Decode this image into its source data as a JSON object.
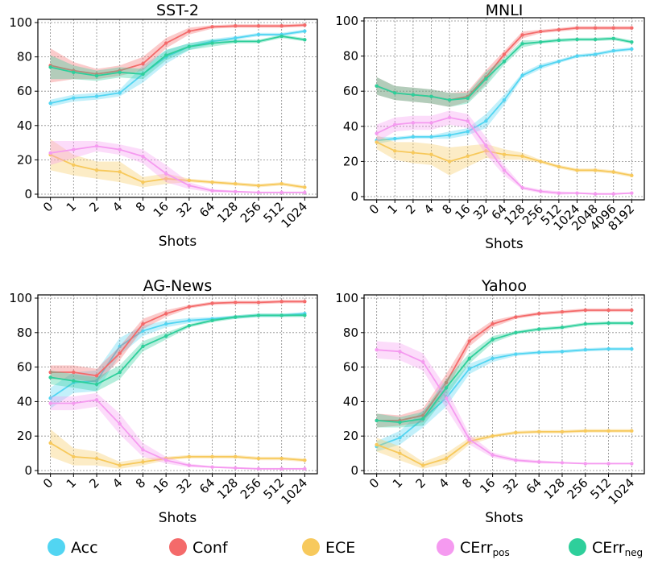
{
  "colors": {
    "Acc": "#52d5f2",
    "Conf": "#f46a6a",
    "ECE": "#f7c95c",
    "CErr_pos": "#f59af0",
    "CErr_neg": "#2ecf9b"
  },
  "legend": [
    {
      "key": "Acc",
      "label": "Acc",
      "sub": ""
    },
    {
      "key": "Conf",
      "label": "Conf",
      "sub": ""
    },
    {
      "key": "ECE",
      "label": "ECE",
      "sub": ""
    },
    {
      "key": "CErr_pos",
      "label": "CErr",
      "sub": "pos"
    },
    {
      "key": "CErr_neg",
      "label": "CErr",
      "sub": "neg"
    }
  ],
  "chart_data": [
    {
      "type": "line",
      "title": "SST-2",
      "xlabel": "Shots",
      "ylabel": "",
      "categories": [
        "0",
        "1",
        "2",
        "4",
        "8",
        "16",
        "32",
        "64",
        "128",
        "256",
        "512",
        "1024"
      ],
      "ylim": [
        0,
        100
      ],
      "yticks": [
        0,
        20,
        40,
        60,
        80,
        100
      ],
      "grid": true,
      "series": [
        {
          "key": "Acc",
          "values": [
            53,
            56,
            57,
            59,
            70,
            80,
            86,
            89,
            91,
            93,
            93,
            95
          ],
          "band": [
            2,
            2,
            2,
            2,
            5,
            4,
            2,
            1.5,
            1,
            1,
            1,
            1
          ]
        },
        {
          "key": "Conf",
          "values": [
            75,
            72,
            70,
            72,
            76,
            88,
            95,
            97.5,
            98,
            98,
            98,
            98.5
          ],
          "band": [
            10,
            5,
            3,
            3,
            4,
            3,
            2,
            1,
            1,
            1,
            1,
            1
          ]
        },
        {
          "key": "ECE",
          "values": [
            23,
            17,
            14,
            13,
            7,
            9,
            8,
            7,
            6,
            5,
            6,
            4
          ],
          "band": [
            9,
            6,
            5,
            6,
            3,
            3,
            1,
            1,
            1,
            1,
            1,
            1
          ]
        },
        {
          "key": "CErr_pos",
          "values": [
            24,
            26,
            28,
            26,
            22,
            12,
            5,
            2,
            1.5,
            1,
            1,
            1
          ],
          "band": [
            7,
            5,
            3,
            3,
            4,
            5,
            2,
            1,
            0.5,
            0.5,
            0.5,
            0.5
          ]
        },
        {
          "key": "CErr_neg",
          "values": [
            74,
            71,
            69,
            71,
            70,
            81,
            86,
            88,
            89,
            89,
            92,
            90
          ],
          "band": [
            7,
            4,
            3,
            3,
            3,
            3,
            2,
            2,
            1,
            1,
            1,
            1
          ]
        }
      ]
    },
    {
      "type": "line",
      "title": "MNLI",
      "xlabel": "Shots",
      "ylabel": "",
      "categories": [
        "0",
        "1",
        "2",
        "4",
        "8",
        "16",
        "32",
        "64",
        "128",
        "256",
        "512",
        "1024",
        "2048",
        "4096",
        "8192"
      ],
      "ylim": [
        0,
        100
      ],
      "yticks": [
        0,
        20,
        40,
        60,
        80,
        100
      ],
      "grid": true,
      "series": [
        {
          "key": "Acc",
          "values": [
            32,
            33,
            34,
            34,
            35,
            37,
            43,
            55,
            69,
            74,
            77,
            80,
            81,
            83,
            84
          ],
          "band": [
            2,
            1,
            1,
            1,
            2,
            2,
            4,
            3,
            1.5,
            1.5,
            1,
            1,
            1,
            1,
            1
          ]
        },
        {
          "key": "Conf",
          "values": [
            63,
            59,
            58,
            57,
            55,
            57,
            68,
            81,
            92,
            94,
            95,
            96,
            96,
            96,
            96
          ],
          "band": [
            5,
            4,
            4,
            4,
            4,
            3,
            4,
            2,
            2,
            1,
            1,
            1,
            1,
            1,
            1
          ]
        },
        {
          "key": "ECE",
          "values": [
            31,
            26,
            25,
            24,
            20,
            23,
            26,
            24,
            23,
            20,
            17,
            15,
            15,
            14,
            12
          ],
          "band": [
            4,
            5,
            6,
            6,
            8,
            6,
            4,
            3,
            2,
            1,
            1,
            1,
            1,
            1,
            1
          ]
        },
        {
          "key": "CErr_pos",
          "values": [
            36,
            41,
            42,
            42,
            45,
            43,
            29,
            15,
            5,
            3,
            2,
            2,
            1.5,
            1.5,
            2
          ],
          "band": [
            5,
            4,
            4,
            4,
            4,
            4,
            5,
            3,
            1,
            1,
            1,
            0.5,
            0.5,
            0.5,
            0.5
          ]
        },
        {
          "key": "CErr_neg",
          "values": [
            63,
            59,
            58,
            57,
            55,
            56,
            67,
            77,
            87,
            88,
            89,
            89.5,
            89.5,
            90,
            88
          ],
          "band": [
            5,
            4,
            4,
            4,
            4,
            3,
            4,
            2,
            2,
            1,
            1,
            1,
            1,
            1,
            1
          ]
        }
      ]
    },
    {
      "type": "line",
      "title": "AG-News",
      "xlabel": "Shots",
      "ylabel": "",
      "categories": [
        "0",
        "1",
        "2",
        "4",
        "8",
        "16",
        "32",
        "64",
        "128",
        "256",
        "512",
        "1024"
      ],
      "ylim": [
        0,
        100
      ],
      "yticks": [
        0,
        20,
        40,
        60,
        80,
        100
      ],
      "grid": true,
      "series": [
        {
          "key": "Acc",
          "values": [
            42,
            51,
            52,
            72,
            81,
            85,
            87,
            88,
            89,
            90,
            90,
            91
          ],
          "band": [
            6,
            6,
            6,
            5,
            3,
            2,
            1.5,
            1,
            1,
            1,
            1,
            1
          ]
        },
        {
          "key": "Conf",
          "values": [
            57,
            57,
            55,
            68,
            85,
            91,
            95,
            97,
            97.5,
            97.5,
            98,
            98
          ],
          "band": [
            4,
            4,
            4,
            4,
            3,
            2,
            1,
            1,
            1,
            1,
            1,
            1
          ]
        },
        {
          "key": "ECE",
          "values": [
            16,
            8,
            7,
            3,
            5,
            7,
            8,
            8,
            8,
            7,
            7,
            6
          ],
          "band": [
            8,
            5,
            4,
            2,
            2,
            1,
            1,
            1,
            1,
            1,
            1,
            1
          ]
        },
        {
          "key": "CErr_pos",
          "values": [
            39,
            39,
            41,
            27,
            12,
            6,
            3,
            2,
            1.5,
            1,
            1,
            1
          ],
          "band": [
            4,
            4,
            4,
            6,
            4,
            2,
            1,
            0.5,
            0.5,
            0.5,
            0.5,
            0.5
          ]
        },
        {
          "key": "CErr_neg",
          "values": [
            54,
            52,
            50,
            57,
            72,
            78,
            84,
            87,
            89,
            90,
            90,
            90
          ],
          "band": [
            4,
            4,
            4,
            4,
            3,
            2,
            1,
            1,
            1,
            1,
            1,
            1
          ]
        }
      ]
    },
    {
      "type": "line",
      "title": "Yahoo",
      "xlabel": "Shots",
      "ylabel": "",
      "categories": [
        "0",
        "1",
        "2",
        "4",
        "8",
        "16",
        "32",
        "64",
        "128",
        "256",
        "512",
        "1024"
      ],
      "ylim": [
        0,
        100
      ],
      "yticks": [
        0,
        20,
        40,
        60,
        80,
        100
      ],
      "grid": true,
      "series": [
        {
          "key": "Acc",
          "values": [
            14,
            19,
            30,
            42,
            59,
            65,
            67.5,
            68.5,
            69,
            70,
            70.5,
            70.5
          ],
          "band": [
            3,
            4,
            5,
            5,
            3,
            2,
            1,
            1,
            1,
            1,
            1,
            1
          ]
        },
        {
          "key": "Conf",
          "values": [
            29,
            29,
            32,
            51,
            75,
            85,
            89,
            91,
            92,
            93,
            93,
            93
          ],
          "band": [
            4,
            3,
            4,
            5,
            3,
            2,
            1,
            1,
            1,
            1,
            1,
            1
          ]
        },
        {
          "key": "ECE",
          "values": [
            15,
            10,
            3,
            7,
            17,
            20,
            22,
            22.5,
            22.5,
            23,
            23,
            23
          ],
          "band": [
            4,
            4,
            2,
            3,
            2,
            1,
            1,
            1,
            1,
            1,
            1,
            1
          ]
        },
        {
          "key": "CErr_pos",
          "values": [
            70,
            69,
            63,
            42,
            18,
            9,
            6,
            5,
            4.5,
            4,
            4,
            4
          ],
          "band": [
            5,
            5,
            5,
            6,
            3,
            1.5,
            1,
            1,
            0.5,
            0.5,
            0.5,
            0.5
          ]
        },
        {
          "key": "CErr_neg",
          "values": [
            29,
            28,
            30,
            48,
            65,
            76,
            80,
            82,
            83,
            85,
            85.5,
            85.5
          ],
          "band": [
            4,
            3,
            4,
            5,
            3,
            2,
            1,
            1,
            1,
            1,
            1,
            1
          ]
        }
      ]
    }
  ]
}
